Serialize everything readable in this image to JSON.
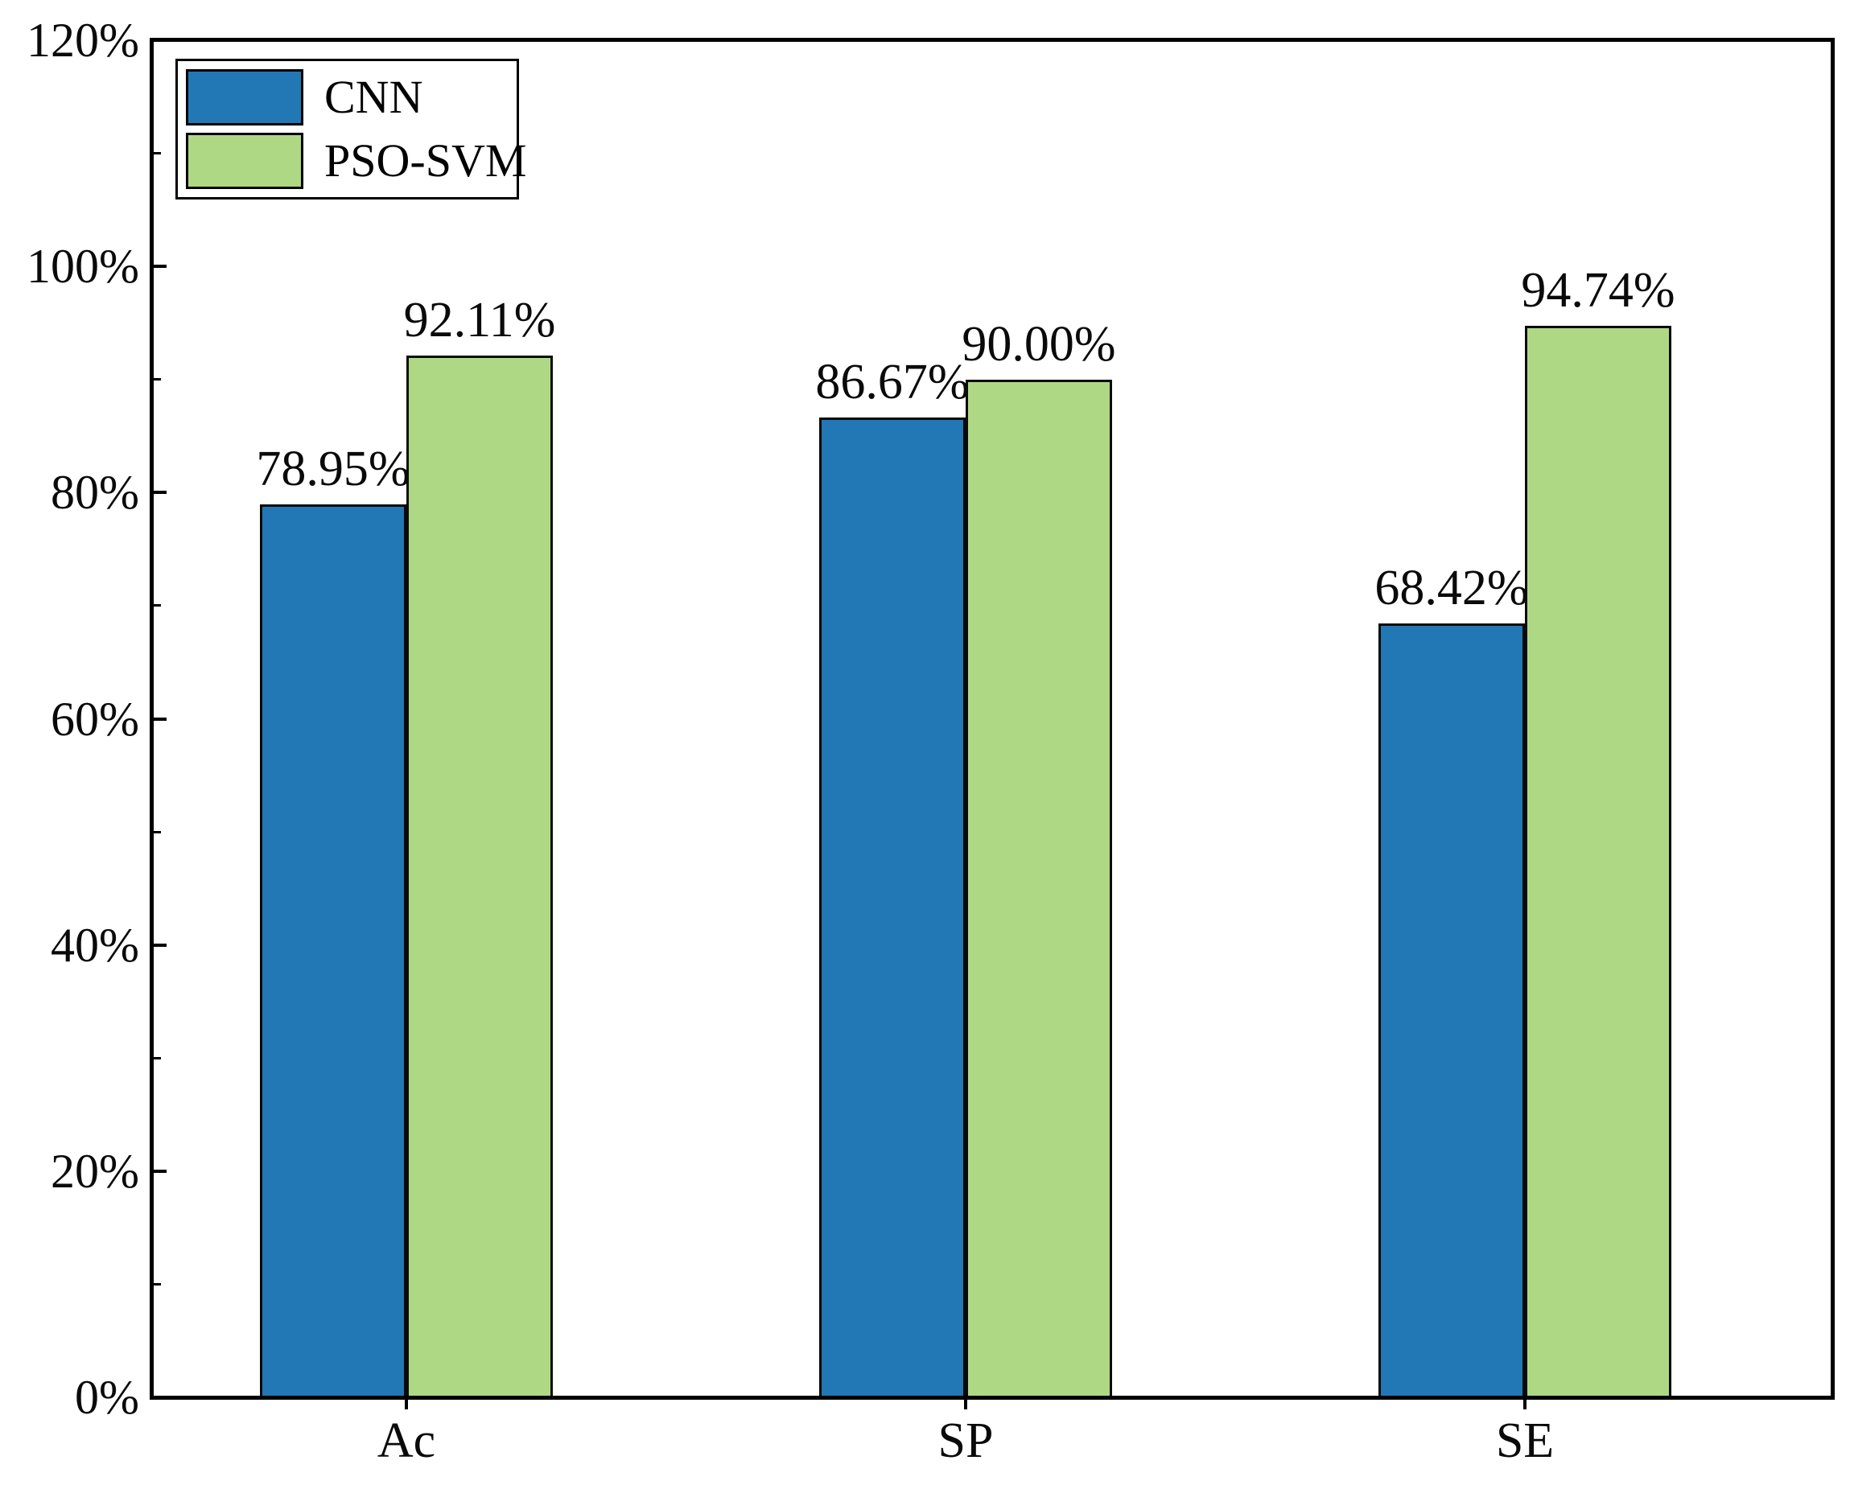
{
  "page": {
    "background": "#ffffff",
    "text_color": "#000000"
  },
  "chart_data": {
    "type": "bar",
    "title": "",
    "xlabel": "",
    "ylabel": "",
    "categories": [
      "Ac",
      "SP",
      "SE"
    ],
    "series": [
      {
        "name": "CNN",
        "color": "#2277B5",
        "values": [
          78.95,
          86.67,
          68.42
        ],
        "value_labels": [
          "78.95%",
          "86.67%",
          "68.42%"
        ]
      },
      {
        "name": "PSO-SVM",
        "color": "#AFD884",
        "values": [
          92.11,
          90.0,
          94.74
        ],
        "value_labels": [
          "92.11%",
          "90.00%",
          "94.74%"
        ]
      }
    ],
    "ylim": [
      0,
      120
    ],
    "y_major_step": 20,
    "y_minor_step": 10,
    "y_tick_labels": [
      "0%",
      "20%",
      "40%",
      "60%",
      "80%",
      "100%",
      "120%"
    ],
    "grid": false,
    "frame": true,
    "bar_edge_color": "#0a0a0a",
    "legend": {
      "position": "top-left",
      "entries": [
        "CNN",
        "PSO-SVM"
      ]
    }
  }
}
